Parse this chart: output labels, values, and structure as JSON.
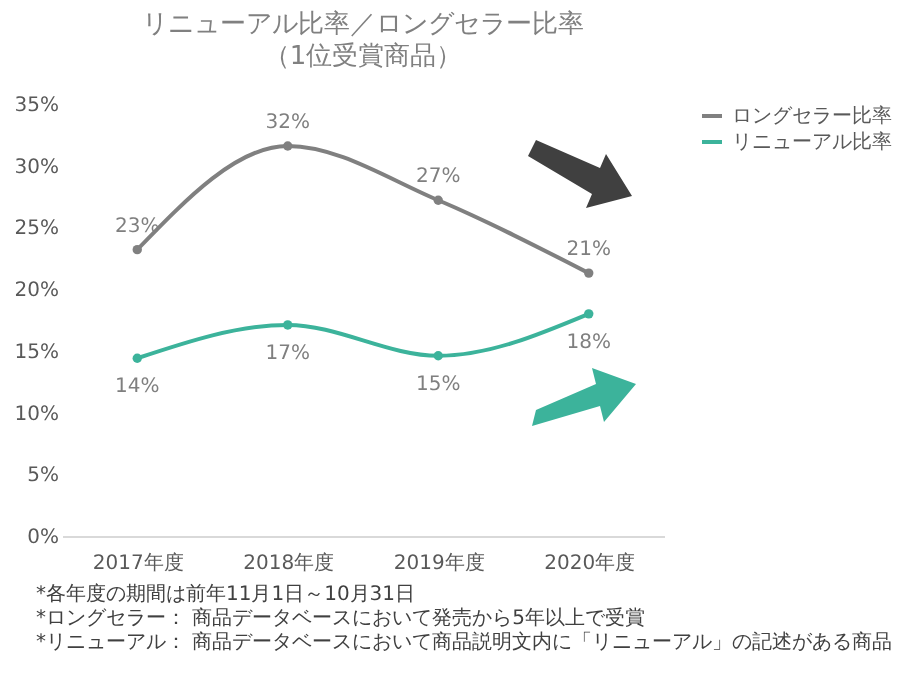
{
  "chart_data": {
    "type": "line",
    "title": "リニューアル比率／ロングセラー比率",
    "subtitle": "（1位受賞商品）",
    "categories": [
      "2017年度",
      "2018年度",
      "2019年度",
      "2020年度"
    ],
    "series": [
      {
        "name": "ロングセラー比率",
        "color": "#808080",
        "values": [
          23.2,
          31.6,
          27.2,
          21.3
        ],
        "value_labels": [
          "23%",
          "32%",
          "27%",
          "21%"
        ]
      },
      {
        "name": "リニューアル比率",
        "color": "#3cb39b",
        "values": [
          14.4,
          17.1,
          14.6,
          18.0
        ],
        "value_labels": [
          "14%",
          "17%",
          "15%",
          "18%"
        ]
      }
    ],
    "ylim": [
      0,
      35
    ],
    "yticks": [
      {
        "value": 0,
        "label": "0%"
      },
      {
        "value": 5,
        "label": "5%"
      },
      {
        "value": 10,
        "label": "10%"
      },
      {
        "value": 15,
        "label": "15%"
      },
      {
        "value": 20,
        "label": "20%"
      },
      {
        "value": 25,
        "label": "25%"
      },
      {
        "value": 30,
        "label": "30%"
      },
      {
        "value": 35,
        "label": "35%"
      }
    ],
    "legend": "right",
    "marker": "circle",
    "line_style": "solid",
    "annotations": [
      "*各年度の期間は前年11月1日～10月31日",
      "*ロングセラー： 商品データベースにおいて発売から5年以上で受賞",
      "*リニューアル： 商品データベースにおいて商品説明文内に「リニューアル」の記述がある商品"
    ]
  }
}
